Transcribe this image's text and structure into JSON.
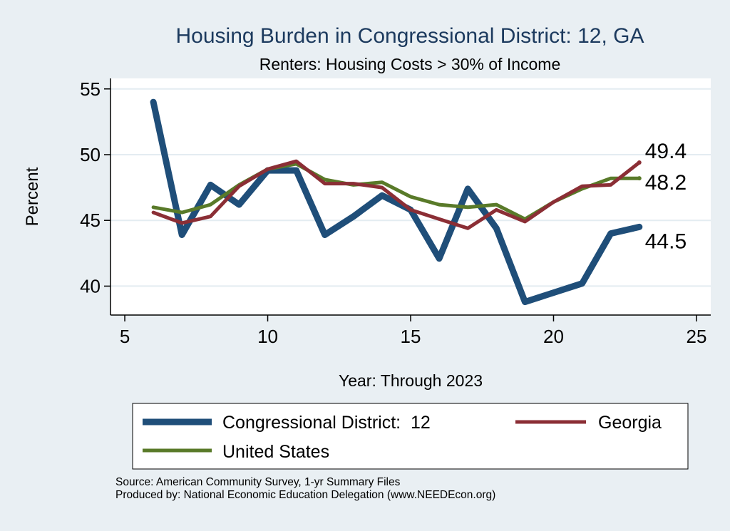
{
  "chart_data": {
    "type": "line",
    "title": "Housing Burden in Congressional District:  12, GA",
    "subtitle": "Renters: Housing Costs > 30% of Income",
    "xlabel": "Year: Through 2023",
    "ylabel": "Percent",
    "xlim": [
      4.5,
      25.5
    ],
    "ylim": [
      37.8,
      55.8
    ],
    "x_ticks": [
      5,
      10,
      15,
      20,
      25
    ],
    "y_ticks": [
      40,
      45,
      50,
      55
    ],
    "grid": true,
    "legend_position": "bottom",
    "x": [
      6,
      7,
      8,
      9,
      10,
      11,
      12,
      13,
      14,
      15,
      16,
      17,
      18,
      19,
      20,
      21,
      22,
      23
    ],
    "series": [
      {
        "name": "Congressional District:  12",
        "color": "#1f4e79",
        "values": [
          54.0,
          43.9,
          47.7,
          46.2,
          48.8,
          48.8,
          43.9,
          45.3,
          46.9,
          45.8,
          42.1,
          47.4,
          44.4,
          38.8,
          39.5,
          40.2,
          44.0,
          44.5
        ],
        "end_label": "44.5"
      },
      {
        "name": "Georgia",
        "color": "#8b2e35",
        "values": [
          45.6,
          44.8,
          45.3,
          47.6,
          48.9,
          49.5,
          47.8,
          47.8,
          47.5,
          45.8,
          45.1,
          44.4,
          45.8,
          44.9,
          46.4,
          47.6,
          47.7,
          49.4
        ],
        "end_label": "49.4"
      },
      {
        "name": "United States",
        "color": "#597a29",
        "values": [
          46.0,
          45.6,
          46.2,
          47.7,
          48.9,
          49.3,
          48.1,
          47.7,
          47.9,
          46.8,
          46.2,
          46.0,
          46.2,
          45.1,
          46.4,
          47.4,
          48.2,
          48.2
        ],
        "end_label": "48.2"
      }
    ]
  },
  "legend": {
    "entries": [
      "Congressional District:  12",
      "Georgia",
      "United States"
    ]
  },
  "source": {
    "line1": "Source: American Community Survey, 1-yr Summary Files",
    "line2": "Produced by: National Economic Education Delegation (www.NEEDEcon.org)"
  }
}
